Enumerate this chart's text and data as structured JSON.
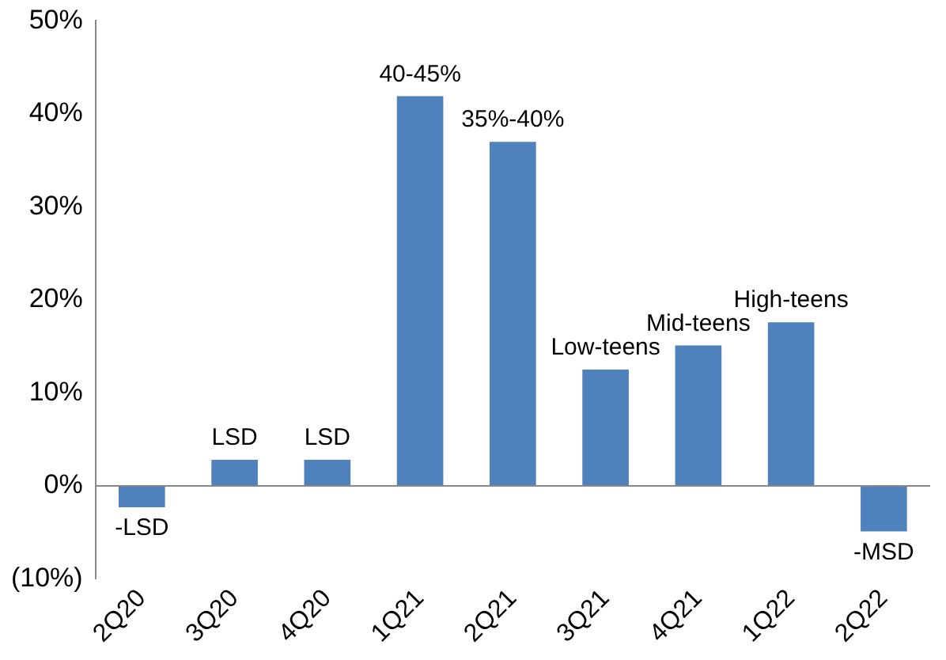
{
  "chart_data": {
    "type": "bar",
    "categories": [
      "2Q20",
      "3Q20",
      "4Q20",
      "1Q21",
      "2Q21",
      "3Q21",
      "4Q21",
      "1Q22",
      "2Q22"
    ],
    "values": [
      -2.3,
      2.8,
      2.8,
      41.9,
      37.0,
      12.5,
      15.1,
      17.6,
      -4.9
    ],
    "annotations": [
      {
        "text": "-LSD",
        "x": "2Q20",
        "y": -2.3
      },
      {
        "text": "LSD",
        "x": "3Q20",
        "y": 2.8
      },
      {
        "text": "LSD",
        "x": "4Q20",
        "y": 2.8
      },
      {
        "text": "40-45%",
        "x": "1Q21",
        "y": 41.9
      },
      {
        "text": "35%-40%",
        "x": "2Q21",
        "y": 37.0
      },
      {
        "text": "Low-teens",
        "x": "3Q21",
        "y": 12.5
      },
      {
        "text": "Mid-teens",
        "x": "4Q21",
        "y": 15.1
      },
      {
        "text": "High-teens",
        "x": "1Q22",
        "y": 17.6
      },
      {
        "text": "-MSD",
        "x": "2Q22",
        "y": -4.9
      }
    ],
    "color": "#4f81bd",
    "ylim": [
      -10,
      50
    ],
    "yticks": [
      {
        "value": -10,
        "label": "(10%)"
      },
      {
        "value": 0,
        "label": "0%"
      },
      {
        "value": 10,
        "label": "10%"
      },
      {
        "value": 20,
        "label": "20%"
      },
      {
        "value": 30,
        "label": "30%"
      },
      {
        "value": 40,
        "label": "40%"
      },
      {
        "value": 50,
        "label": "50%"
      }
    ],
    "ref_lines": [
      {
        "axis": "y",
        "value": 0,
        "color": "#888888"
      }
    ],
    "grid": false,
    "legend": false
  }
}
